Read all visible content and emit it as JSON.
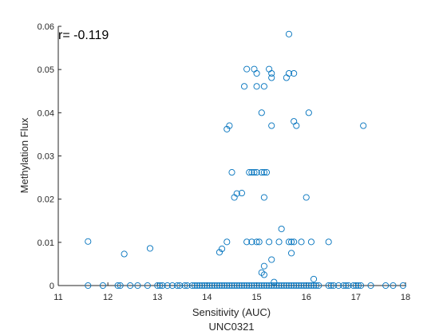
{
  "chart_data": {
    "type": "scatter",
    "title": "UNC0321",
    "xlabel": "Sensitivity (AUC)",
    "ylabel": "Methylation Flux",
    "annotation": "r= -0.119",
    "xlim": [
      11,
      18
    ],
    "ylim": [
      0,
      0.06
    ],
    "xticks": [
      "11",
      "12",
      "13",
      "14",
      "15",
      "16",
      "17",
      "18"
    ],
    "yticks": [
      "0",
      "0.01",
      "0.02",
      "0.03",
      "0.04",
      "0.05",
      "0.06"
    ],
    "marker": "open-circle",
    "color": "#0072BD",
    "axis_color": "#262626",
    "grid": false,
    "series": [
      {
        "points": [
          [
            11.6,
            0.0102
          ],
          [
            12.33,
            0.0073
          ],
          [
            12.85,
            0.0086
          ],
          [
            14.25,
            0.0077
          ],
          [
            14.3,
            0.0085
          ],
          [
            14.4,
            0.0101
          ],
          [
            14.4,
            0.0362
          ],
          [
            14.45,
            0.037
          ],
          [
            14.5,
            0.0262
          ],
          [
            14.55,
            0.0204
          ],
          [
            14.6,
            0.0213
          ],
          [
            14.7,
            0.0214
          ],
          [
            14.75,
            0.0461
          ],
          [
            14.8,
            0.0501
          ],
          [
            14.8,
            0.0101
          ],
          [
            14.85,
            0.0262
          ],
          [
            14.9,
            0.0262
          ],
          [
            14.95,
            0.0262
          ],
          [
            14.9,
            0.0101
          ],
          [
            14.95,
            0.0501
          ],
          [
            15.0,
            0.0262
          ],
          [
            15.0,
            0.0491
          ],
          [
            15.0,
            0.0461
          ],
          [
            15.0,
            0.0101
          ],
          [
            15.05,
            0.0101
          ],
          [
            15.1,
            0.0262
          ],
          [
            15.1,
            0.04
          ],
          [
            15.1,
            0.003
          ],
          [
            15.15,
            0.0461
          ],
          [
            15.15,
            0.0262
          ],
          [
            15.15,
            0.0204
          ],
          [
            15.15,
            0.0045
          ],
          [
            15.15,
            0.0025
          ],
          [
            15.2,
            0.0262
          ],
          [
            15.25,
            0.0101
          ],
          [
            15.25,
            0.0501
          ],
          [
            15.3,
            0.0491
          ],
          [
            15.3,
            0.0481
          ],
          [
            15.3,
            0.037
          ],
          [
            15.3,
            0.006
          ],
          [
            15.35,
            0.0008
          ],
          [
            15.45,
            0.0101
          ],
          [
            15.5,
            0.0131
          ],
          [
            15.6,
            0.0481
          ],
          [
            15.65,
            0.0582
          ],
          [
            15.65,
            0.0491
          ],
          [
            15.65,
            0.0101
          ],
          [
            15.7,
            0.0101
          ],
          [
            15.7,
            0.0075
          ],
          [
            15.75,
            0.0491
          ],
          [
            15.75,
            0.038
          ],
          [
            15.8,
            0.037
          ],
          [
            15.75,
            0.0101
          ],
          [
            15.9,
            0.0101
          ],
          [
            16.0,
            0.0204
          ],
          [
            16.05,
            0.04
          ],
          [
            16.1,
            0.0101
          ],
          [
            16.15,
            0.0015
          ],
          [
            16.45,
            0.0101
          ],
          [
            17.15,
            0.037
          ],
          [
            11.6,
            0
          ],
          [
            11.9,
            0
          ],
          [
            12.2,
            0
          ],
          [
            12.25,
            0
          ],
          [
            12.45,
            0
          ],
          [
            12.6,
            0
          ],
          [
            12.8,
            0
          ],
          [
            13.0,
            0
          ],
          [
            13.05,
            0
          ],
          [
            13.1,
            0
          ],
          [
            13.2,
            0
          ],
          [
            13.3,
            0
          ],
          [
            13.4,
            0
          ],
          [
            13.45,
            0
          ],
          [
            13.55,
            0
          ],
          [
            13.6,
            0
          ],
          [
            13.7,
            0
          ],
          [
            13.75,
            0
          ],
          [
            13.8,
            0
          ],
          [
            13.85,
            0
          ],
          [
            13.9,
            0
          ],
          [
            13.95,
            0
          ],
          [
            14.0,
            0
          ],
          [
            14.05,
            0
          ],
          [
            14.1,
            0
          ],
          [
            14.15,
            0
          ],
          [
            14.2,
            0
          ],
          [
            14.25,
            0
          ],
          [
            14.3,
            0
          ],
          [
            14.35,
            0
          ],
          [
            14.4,
            0
          ],
          [
            14.45,
            0
          ],
          [
            14.5,
            0
          ],
          [
            14.55,
            0
          ],
          [
            14.6,
            0
          ],
          [
            14.65,
            0
          ],
          [
            14.7,
            0
          ],
          [
            14.75,
            0
          ],
          [
            14.8,
            0
          ],
          [
            14.85,
            0
          ],
          [
            14.9,
            0
          ],
          [
            14.95,
            0
          ],
          [
            15.0,
            0
          ],
          [
            15.05,
            0
          ],
          [
            15.1,
            0
          ],
          [
            15.15,
            0
          ],
          [
            15.2,
            0
          ],
          [
            15.25,
            0
          ],
          [
            15.3,
            0
          ],
          [
            15.35,
            0
          ],
          [
            15.4,
            0
          ],
          [
            15.45,
            0
          ],
          [
            15.5,
            0
          ],
          [
            15.55,
            0
          ],
          [
            15.6,
            0
          ],
          [
            15.65,
            0
          ],
          [
            15.7,
            0
          ],
          [
            15.75,
            0
          ],
          [
            15.8,
            0
          ],
          [
            15.85,
            0
          ],
          [
            15.9,
            0
          ],
          [
            15.95,
            0
          ],
          [
            16.0,
            0
          ],
          [
            16.05,
            0
          ],
          [
            16.1,
            0
          ],
          [
            16.15,
            0
          ],
          [
            16.2,
            0
          ],
          [
            16.25,
            0
          ],
          [
            16.45,
            0
          ],
          [
            16.5,
            0
          ],
          [
            16.55,
            0
          ],
          [
            16.65,
            0
          ],
          [
            16.75,
            0
          ],
          [
            16.8,
            0
          ],
          [
            16.85,
            0
          ],
          [
            16.95,
            0
          ],
          [
            17.0,
            0
          ],
          [
            17.05,
            0
          ],
          [
            17.1,
            0
          ],
          [
            17.3,
            0
          ],
          [
            17.6,
            0
          ],
          [
            17.75,
            0
          ],
          [
            17.95,
            0
          ]
        ]
      }
    ]
  }
}
